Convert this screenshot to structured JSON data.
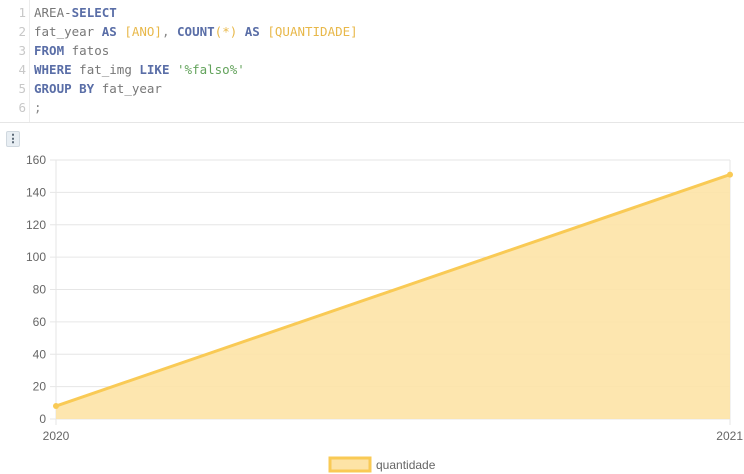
{
  "editor": {
    "line_numbers": [
      "1",
      "2",
      "3",
      "4",
      "5",
      "6"
    ],
    "lines": [
      [
        {
          "t": "AREA-",
          "c": ""
        },
        {
          "t": "SELECT",
          "c": "kw"
        }
      ],
      [
        {
          "t": "fat_year ",
          "c": ""
        },
        {
          "t": "AS",
          "c": "kw"
        },
        {
          "t": " ",
          "c": ""
        },
        {
          "t": "[ANO]",
          "c": "br"
        },
        {
          "t": ", ",
          "c": "op"
        },
        {
          "t": "COUNT",
          "c": "kw"
        },
        {
          "t": "(*)",
          "c": "br"
        },
        {
          "t": " ",
          "c": ""
        },
        {
          "t": "AS",
          "c": "kw"
        },
        {
          "t": " ",
          "c": ""
        },
        {
          "t": "[QUANTIDADE]",
          "c": "br"
        }
      ],
      [
        {
          "t": "FROM",
          "c": "kw"
        },
        {
          "t": " fatos",
          "c": ""
        }
      ],
      [
        {
          "t": "WHERE",
          "c": "kw"
        },
        {
          "t": " fat_img ",
          "c": ""
        },
        {
          "t": "LIKE",
          "c": "kw"
        },
        {
          "t": " ",
          "c": ""
        },
        {
          "t": "'%falso%'",
          "c": "st"
        }
      ],
      [
        {
          "t": "GROUP BY",
          "c": "kw"
        },
        {
          "t": " fat_year",
          "c": ""
        }
      ],
      [
        {
          "t": ";",
          "c": "op"
        }
      ]
    ]
  },
  "toolbar": {
    "menu_icon": "vertical-ellipsis-icon",
    "menu_glyph": "⋮"
  },
  "colors": {
    "line": "#f9ca55",
    "fill": "#fde3a6",
    "grid": "#e6e6e6",
    "tick": "#666666"
  },
  "chart_data": {
    "type": "area",
    "categories": [
      "2020",
      "2021"
    ],
    "series": [
      {
        "name": "quantidade",
        "values": [
          8,
          151
        ]
      }
    ],
    "ylim": [
      0,
      160
    ],
    "yticks": [
      0,
      20,
      40,
      60,
      80,
      100,
      120,
      140,
      160
    ],
    "grid": true,
    "legend": "bottom"
  }
}
